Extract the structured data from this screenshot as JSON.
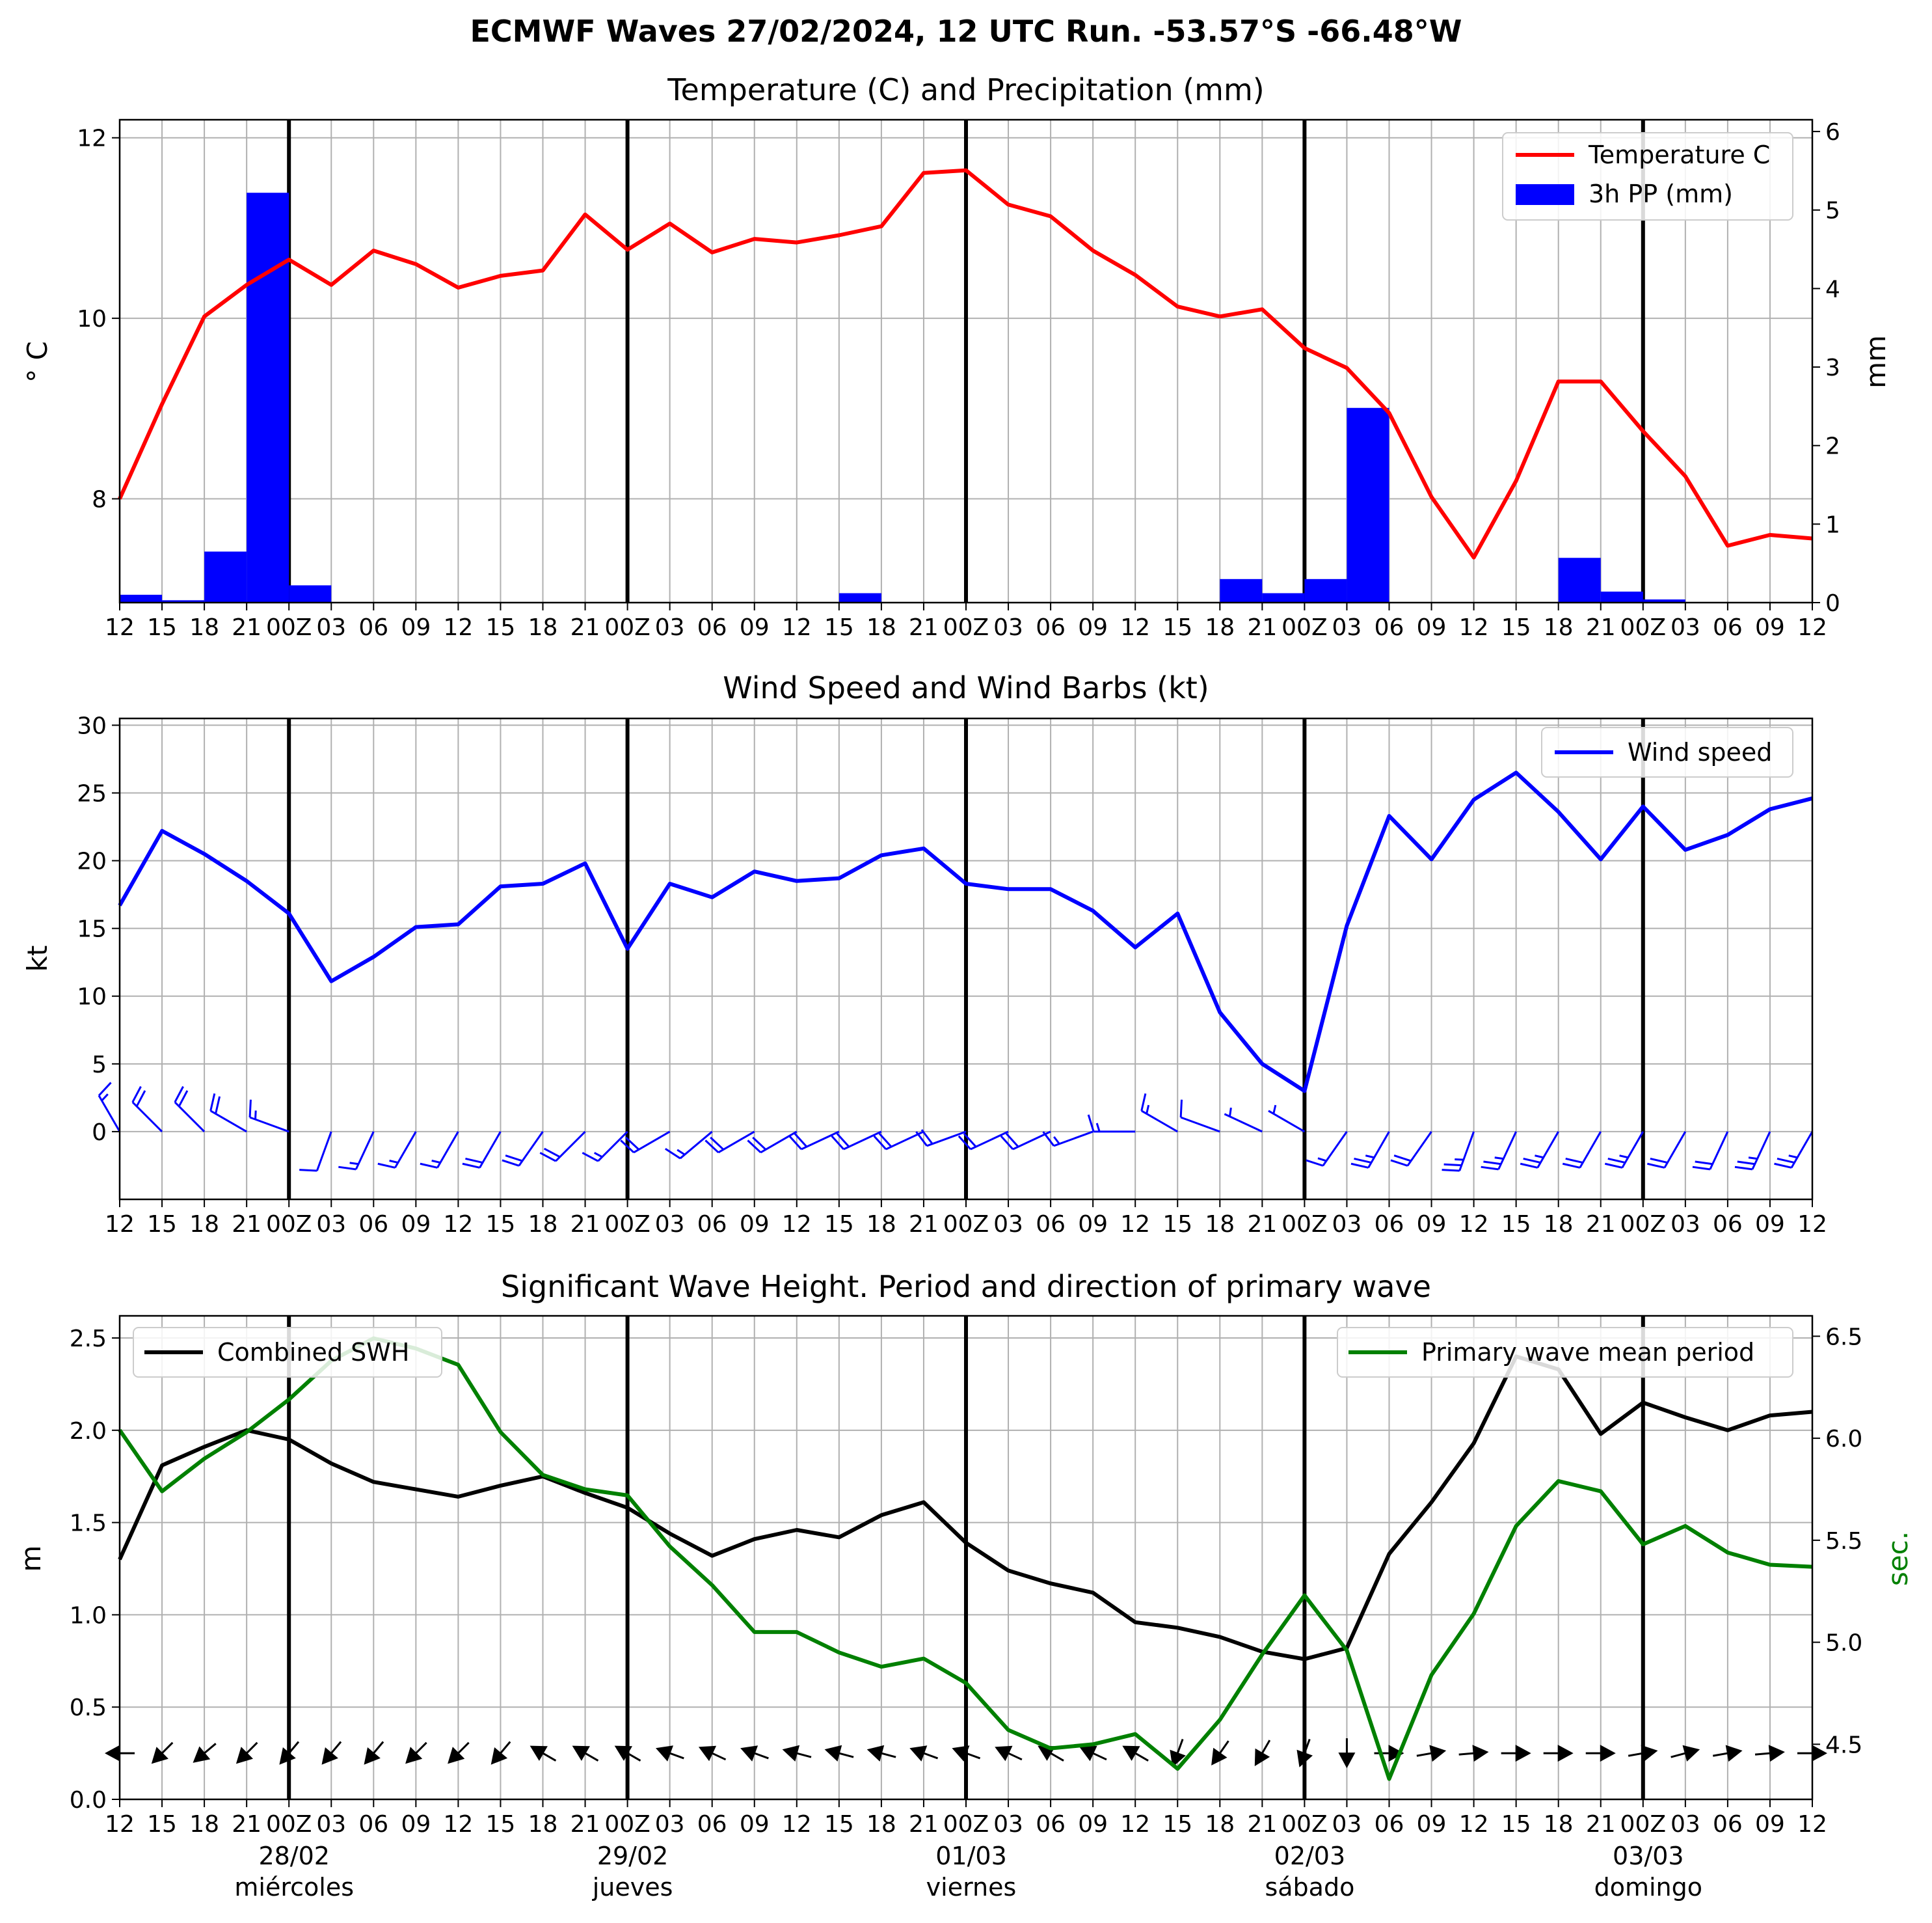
{
  "suptitle": "ECMWF Waves 27/02/2024, 12 UTC Run. -53.57°S -66.48°W",
  "colors": {
    "temp": "#ff0000",
    "precip": "#0000ff",
    "wind": "#0000ff",
    "swh": "#000000",
    "period": "#008000",
    "grid": "#b0b0b0"
  },
  "time_axis": {
    "tick_labels": [
      "12",
      "15",
      "18",
      "21",
      "00Z",
      "03",
      "06",
      "09",
      "12",
      "15",
      "18",
      "21",
      "00Z",
      "03",
      "06",
      "09",
      "12",
      "15",
      "18",
      "21",
      "00Z",
      "03",
      "06",
      "09",
      "12",
      "15",
      "18",
      "21",
      "00Z",
      "03",
      "06",
      "09",
      "12",
      "15",
      "18",
      "21",
      "00Z",
      "03",
      "06",
      "09",
      "12"
    ],
    "day_start_indices": [
      4,
      12,
      20,
      28,
      36
    ],
    "dates": [
      "28/02",
      "29/02",
      "01/03",
      "02/03",
      "03/03"
    ],
    "weekdays": [
      "miércoles",
      "jueves",
      "viernes",
      "sábado",
      "domingo"
    ]
  },
  "chart_data": [
    {
      "type": "line",
      "title": "Temperature (C) and Precipitation (mm)",
      "ylabel": "$^\\circ$C",
      "ylabel_display": "° C",
      "y2label": "mm",
      "ylim": [
        6.85,
        12.2
      ],
      "y2lim": [
        0,
        6.15
      ],
      "yticks": [
        8,
        10,
        12
      ],
      "y2ticks": [
        0,
        1,
        2,
        3,
        4,
        5,
        6
      ],
      "legend_position": "top-right",
      "series": [
        {
          "name": "Temperature C",
          "type": "line",
          "values": [
            8.0,
            9.05,
            10.02,
            10.37,
            10.65,
            10.37,
            10.75,
            10.6,
            10.34,
            10.47,
            10.53,
            11.15,
            10.76,
            11.05,
            10.73,
            10.88,
            10.84,
            10.92,
            11.02,
            11.61,
            11.64,
            11.26,
            11.13,
            10.75,
            10.48,
            10.13,
            10.02,
            10.1,
            9.67,
            9.45,
            8.95,
            8.02,
            7.35,
            8.2,
            9.3,
            9.3,
            8.75,
            8.25,
            7.48,
            7.6,
            7.56
          ]
        },
        {
          "name": "3h PP (mm)",
          "type": "bar",
          "values": [
            0.1,
            0.03,
            0.65,
            5.22,
            0.22,
            0,
            0,
            0,
            0,
            0,
            0,
            0,
            0,
            0,
            0,
            0,
            0,
            0.12,
            0,
            0,
            0,
            0,
            0,
            0,
            0,
            0,
            0.3,
            0.12,
            0.3,
            2.48,
            0,
            0,
            0,
            0,
            0.57,
            0.14,
            0.04,
            0,
            0,
            0,
            0
          ]
        }
      ]
    },
    {
      "type": "line",
      "title": "Wind Speed and Wind Barbs (kt)",
      "ylabel": "kt",
      "ylim": [
        -5,
        30.5
      ],
      "yticks": [
        0,
        5,
        10,
        15,
        20,
        25,
        30
      ],
      "legend_position": "top-right",
      "series": [
        {
          "name": "Wind speed",
          "values": [
            16.7,
            22.2,
            20.5,
            18.5,
            16.1,
            11.1,
            12.9,
            15.1,
            15.3,
            18.1,
            18.3,
            19.8,
            13.5,
            18.3,
            17.3,
            19.2,
            18.5,
            18.7,
            20.4,
            20.9,
            18.3,
            17.9,
            17.9,
            16.3,
            13.6,
            16.1,
            8.8,
            5.0,
            3.0,
            15.2,
            23.3,
            20.1,
            24.5,
            26.5,
            23.6,
            20.1,
            24.0,
            20.8,
            21.9,
            23.8,
            24.6
          ]
        }
      ],
      "barbs": {
        "direction_deg": [
          330,
          315,
          315,
          300,
          290,
          200,
          205,
          210,
          210,
          210,
          215,
          225,
          225,
          240,
          230,
          240,
          240,
          245,
          245,
          245,
          250,
          245,
          245,
          250,
          270,
          300,
          290,
          295,
          300,
          215,
          210,
          215,
          200,
          205,
          210,
          210,
          210,
          210,
          205,
          205,
          210
        ],
        "speed_kt": [
          16.7,
          22.2,
          20.5,
          18.5,
          16.1,
          11.1,
          12.9,
          15.1,
          15.3,
          18.1,
          18.3,
          19.8,
          13.5,
          18.3,
          17.3,
          19.2,
          18.5,
          18.7,
          20.4,
          20.9,
          18.3,
          17.9,
          17.9,
          16.3,
          13.6,
          16.1,
          8.8,
          5.0,
          3.0,
          15.2,
          23.3,
          20.1,
          24.5,
          26.5,
          23.6,
          20.1,
          24.0,
          20.8,
          21.9,
          23.8,
          24.6
        ]
      }
    },
    {
      "type": "line",
      "title": "Significant Wave Height. Period and direction of primary wave",
      "ylabel": "m",
      "y2label": "sec.",
      "ylim": [
        0,
        2.62
      ],
      "y2lim": [
        4.23,
        6.6
      ],
      "yticks": [
        0.0,
        0.5,
        1.0,
        1.5,
        2.0,
        2.5
      ],
      "y2ticks": [
        4.5,
        5.0,
        5.5,
        6.0,
        6.5
      ],
      "legend_positions": {
        "Combined SWH": "top-left",
        "Primary wave mean period": "top-right"
      },
      "series": [
        {
          "name": "Combined SWH",
          "axis": "left",
          "values": [
            1.3,
            1.81,
            1.91,
            2.0,
            1.95,
            1.82,
            1.72,
            1.68,
            1.64,
            1.7,
            1.75,
            1.66,
            1.58,
            1.44,
            1.32,
            1.41,
            1.46,
            1.42,
            1.54,
            1.61,
            1.39,
            1.24,
            1.17,
            1.12,
            0.96,
            0.93,
            0.88,
            0.8,
            0.76,
            0.82,
            1.33,
            1.61,
            1.93,
            2.4,
            2.33,
            1.98,
            2.15,
            2.07,
            2.0,
            2.08,
            2.1
          ]
        },
        {
          "name": "Primary wave mean period",
          "axis": "right",
          "values": [
            6.04,
            5.74,
            5.9,
            6.03,
            6.19,
            6.38,
            6.49,
            6.44,
            6.36,
            6.03,
            5.82,
            5.75,
            5.72,
            5.47,
            5.28,
            5.05,
            5.05,
            4.95,
            4.88,
            4.92,
            4.8,
            4.57,
            4.48,
            4.5,
            4.55,
            4.38,
            4.62,
            4.94,
            5.23,
            4.96,
            4.33,
            4.84,
            5.14,
            5.57,
            5.79,
            5.74,
            5.48,
            5.57,
            5.44,
            5.38,
            5.37
          ]
        }
      ],
      "arrows": {
        "direction_deg": [
          270,
          225,
          230,
          225,
          220,
          220,
          220,
          225,
          225,
          220,
          300,
          300,
          300,
          290,
          295,
          290,
          285,
          285,
          285,
          290,
          290,
          295,
          300,
          295,
          300,
          200,
          215,
          210,
          200,
          180,
          90,
          80,
          85,
          90,
          90,
          90,
          80,
          75,
          80,
          85,
          90
        ]
      }
    }
  ]
}
